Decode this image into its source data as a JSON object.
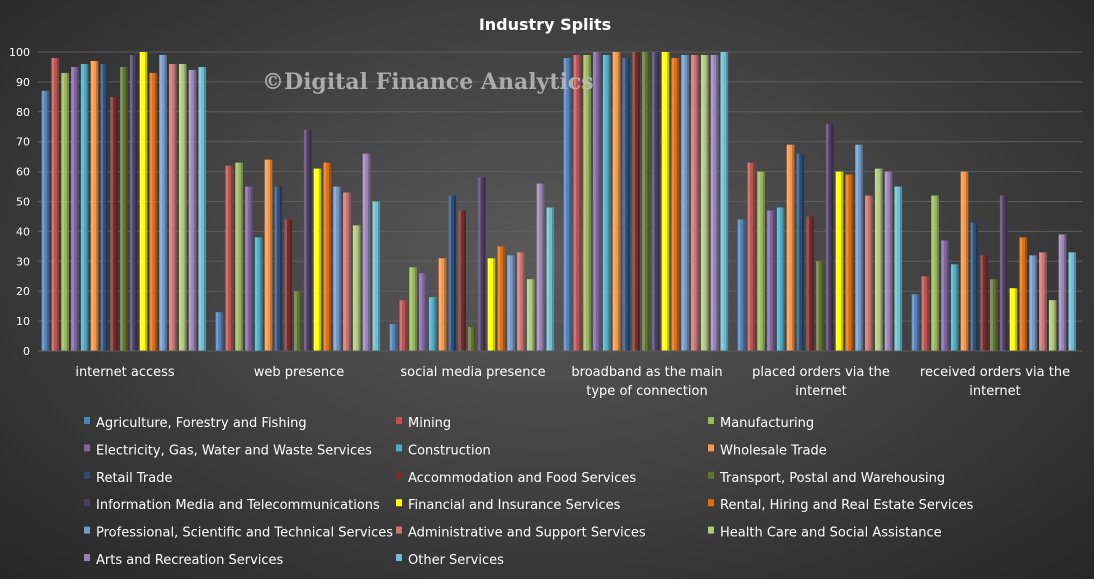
{
  "watermark": "©Digital Finance Analytics",
  "chart_data": {
    "type": "bar",
    "title": "Industry  Splits",
    "xlabel": "",
    "ylabel": "",
    "ylim": [
      0,
      100
    ],
    "yticks": [
      0,
      10,
      20,
      30,
      40,
      50,
      60,
      70,
      80,
      90,
      100
    ],
    "grid": true,
    "legend_position": "bottom",
    "categories": [
      [
        "internet access"
      ],
      [
        "web presence"
      ],
      [
        "social media presence"
      ],
      [
        "broadband as the main",
        "type of connection"
      ],
      [
        "placed orders via the",
        "internet"
      ],
      [
        "received orders via the",
        "internet"
      ]
    ],
    "series": [
      {
        "name": "Agriculture, Forestry and Fishing",
        "color": "#4f81bd",
        "values": [
          87,
          13,
          9,
          98,
          44,
          19
        ]
      },
      {
        "name": "Mining",
        "color": "#c0504d",
        "values": [
          98,
          62,
          17,
          99,
          63,
          25
        ]
      },
      {
        "name": "Manufacturing",
        "color": "#9bbb59",
        "values": [
          93,
          63,
          28,
          99,
          60,
          52
        ]
      },
      {
        "name": "Electricity, Gas, Water and Waste Services",
        "color": "#8064a2",
        "values": [
          95,
          55,
          26,
          100,
          47,
          37
        ]
      },
      {
        "name": "Construction",
        "color": "#4bacc6",
        "values": [
          96,
          38,
          18,
          99,
          48,
          29
        ]
      },
      {
        "name": "Wholesale Trade",
        "color": "#f79646",
        "values": [
          97,
          64,
          31,
          100,
          69,
          60
        ]
      },
      {
        "name": "Retail Trade",
        "color": "#2c4d75",
        "values": [
          96,
          55,
          52,
          98,
          66,
          43
        ]
      },
      {
        "name": "Accommodation and Food Services",
        "color": "#772c2a",
        "values": [
          85,
          44,
          47,
          100,
          45,
          32
        ]
      },
      {
        "name": "Transport, Postal and Warehousing",
        "color": "#5f7530",
        "values": [
          95,
          20,
          8,
          100,
          30,
          24
        ]
      },
      {
        "name": "Information Media and Telecommunications",
        "color": "#4d3b62",
        "values": [
          99,
          74,
          58,
          100,
          76,
          52
        ]
      },
      {
        "name": "Financial and Insurance Services",
        "color": "#ffff00",
        "values": [
          100,
          61,
          31,
          100,
          60,
          21
        ]
      },
      {
        "name": "Rental, Hiring and Real Estate Services",
        "color": "#e46c0a",
        "values": [
          93,
          63,
          35,
          98,
          59,
          38
        ]
      },
      {
        "name": "Professional, Scientific and Technical Services",
        "color": "#729aca",
        "values": [
          99,
          55,
          32,
          99,
          69,
          32
        ]
      },
      {
        "name": "Administrative and Support Services",
        "color": "#cd7371",
        "values": [
          96,
          53,
          33,
          99,
          52,
          33
        ]
      },
      {
        "name": "Health Care and Social Assistance",
        "color": "#afc97a",
        "values": [
          96,
          42,
          24,
          99,
          61,
          17
        ]
      },
      {
        "name": "Arts and Recreation Services",
        "color": "#9983b5",
        "values": [
          94,
          66,
          56,
          99,
          60,
          39
        ]
      },
      {
        "name": "Other Services",
        "color": "#6fbdd1",
        "values": [
          95,
          50,
          48,
          100,
          55,
          33
        ]
      }
    ]
  }
}
